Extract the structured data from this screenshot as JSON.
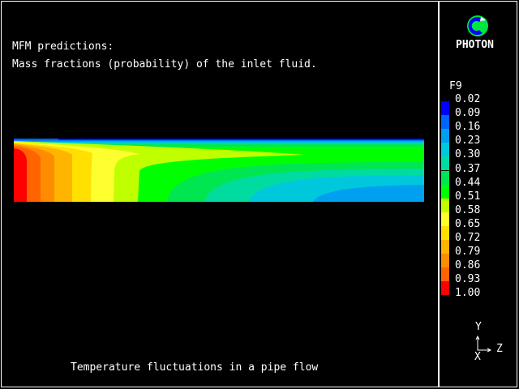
{
  "header": {
    "line1": "MFM predictions:",
    "line2": "Mass fractions (probability) of the inlet fluid."
  },
  "footer": {
    "caption": "Temperature fluctuations in a pipe flow"
  },
  "logo": {
    "text": "PHOTON",
    "colors": [
      "#0000ff",
      "#00e640"
    ]
  },
  "axes_triad": {
    "up": "Y",
    "right": "Z",
    "out": "X"
  },
  "chart_data": {
    "type": "heatmap",
    "subtype": "filled-contour",
    "variable": "F9",
    "legend_title": "F9",
    "legend_placement": "right",
    "levels": [
      "0.02",
      "0.09",
      "0.16",
      "0.23",
      "0.30",
      "0.37",
      "0.44",
      "0.51",
      "0.58",
      "0.65",
      "0.72",
      "0.79",
      "0.86",
      "0.93",
      "1.00"
    ],
    "band_colors": [
      "#0000ff",
      "#0064ff",
      "#00a0f0",
      "#00c8dc",
      "#00dca0",
      "#00e650",
      "#00ff00",
      "#c0ff00",
      "#ffff30",
      "#ffe000",
      "#ffb400",
      "#ff8c00",
      "#ff6400",
      "#ff0000"
    ],
    "description_of_field": {
      "max_value_region": "inlet (left edge)",
      "min_value_region": "top wall strip",
      "trend": "decreases downstream along Z and toward the top wall"
    }
  }
}
